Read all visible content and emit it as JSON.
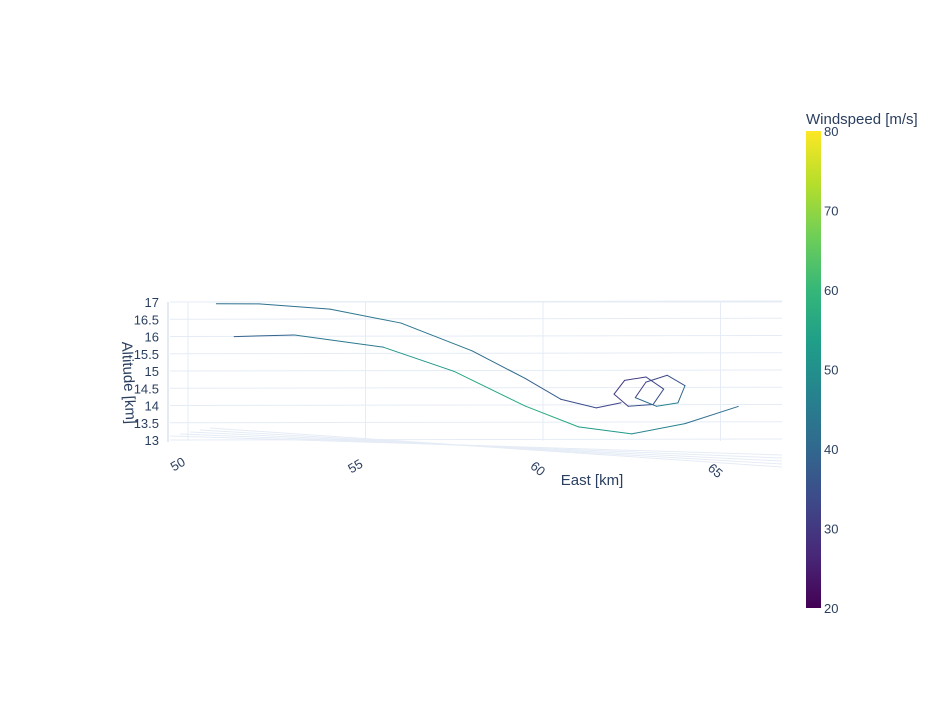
{
  "chart_data": {
    "type": "line",
    "dimensions": "3d",
    "xlabel": "East [km]",
    "zlabel": "Altitude [km]",
    "x_ticks": [
      "50",
      "55",
      "60",
      "65"
    ],
    "z_ticks": [
      "13",
      "13.5",
      "14",
      "14.5",
      "15",
      "15.5",
      "16",
      "16.5",
      "17"
    ],
    "xlim": [
      50,
      66
    ],
    "zlim": [
      13,
      17
    ],
    "grid": true,
    "colorbar": {
      "title": "Windspeed [m/s]",
      "min": 20,
      "max": 80,
      "ticks": [
        "20",
        "30",
        "40",
        "50",
        "60",
        "70",
        "80"
      ],
      "colorscale": "viridis",
      "colors": [
        "#440154",
        "#482878",
        "#3e4989",
        "#31688e",
        "#26828e",
        "#1f9e89",
        "#35b779",
        "#6ece58",
        "#b5de2b",
        "#fde725"
      ]
    },
    "series": [
      {
        "points": [
          {
            "x": 50.8,
            "z": 16.95,
            "speed": 42
          },
          {
            "x": 52.0,
            "z": 16.95,
            "speed": 42
          },
          {
            "x": 54.0,
            "z": 16.8,
            "speed": 43
          },
          {
            "x": 56.0,
            "z": 16.4,
            "speed": 44
          },
          {
            "x": 58.0,
            "z": 15.6,
            "speed": 42
          },
          {
            "x": 59.5,
            "z": 14.8,
            "speed": 40
          },
          {
            "x": 60.5,
            "z": 14.2,
            "speed": 36
          },
          {
            "x": 61.5,
            "z": 13.95,
            "speed": 33
          },
          {
            "x": 62.2,
            "z": 14.1,
            "speed": 32
          }
        ]
      },
      {
        "points": [
          {
            "x": 51.3,
            "z": 16.0,
            "speed": 38
          },
          {
            "x": 53.0,
            "z": 16.05,
            "speed": 40
          },
          {
            "x": 55.5,
            "z": 15.7,
            "speed": 48
          },
          {
            "x": 57.5,
            "z": 15.0,
            "speed": 55
          },
          {
            "x": 59.5,
            "z": 14.0,
            "speed": 57
          },
          {
            "x": 61.0,
            "z": 13.4,
            "speed": 55
          },
          {
            "x": 62.5,
            "z": 13.2,
            "speed": 50
          },
          {
            "x": 64.0,
            "z": 13.5,
            "speed": 44
          },
          {
            "x": 65.5,
            "z": 14.0,
            "speed": 40
          }
        ]
      },
      {
        "points": [
          {
            "x": 62.0,
            "z": 14.35,
            "speed": 28
          },
          {
            "x": 62.3,
            "z": 14.75,
            "speed": 30
          },
          {
            "x": 62.9,
            "z": 14.85,
            "speed": 32
          },
          {
            "x": 63.4,
            "z": 14.5,
            "speed": 34
          },
          {
            "x": 63.1,
            "z": 14.05,
            "speed": 36
          },
          {
            "x": 62.4,
            "z": 14.0,
            "speed": 34
          },
          {
            "x": 62.0,
            "z": 14.35,
            "speed": 28
          }
        ]
      },
      {
        "points": [
          {
            "x": 62.6,
            "z": 14.25,
            "speed": 30
          },
          {
            "x": 62.9,
            "z": 14.7,
            "speed": 32
          },
          {
            "x": 63.5,
            "z": 14.9,
            "speed": 34
          },
          {
            "x": 64.0,
            "z": 14.6,
            "speed": 36
          },
          {
            "x": 63.8,
            "z": 14.1,
            "speed": 44
          },
          {
            "x": 63.2,
            "z": 14.0,
            "speed": 50
          },
          {
            "x": 62.6,
            "z": 14.25,
            "speed": 30
          }
        ]
      }
    ]
  }
}
